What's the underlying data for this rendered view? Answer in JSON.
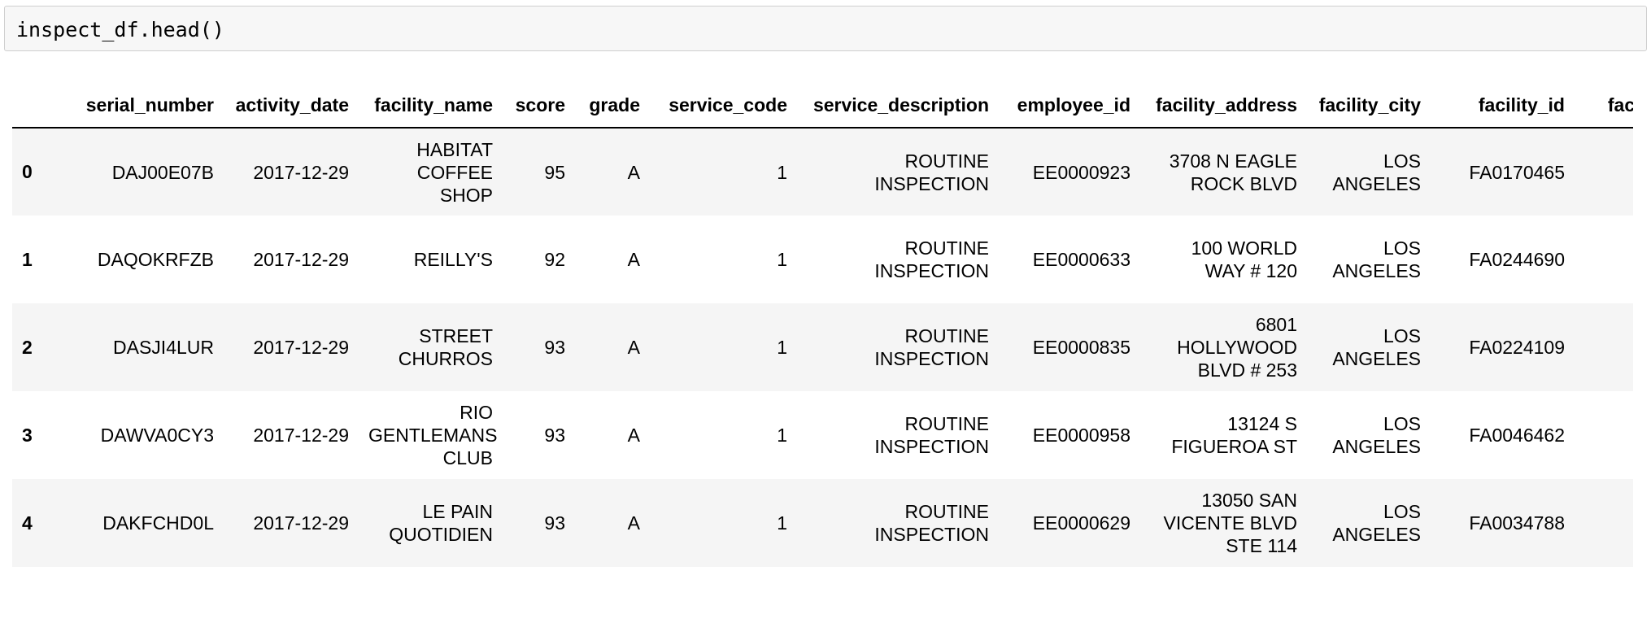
{
  "input_cell": {
    "code": "inspect_df.head()"
  },
  "table": {
    "columns": [
      "",
      "serial_number",
      "activity_date",
      "facility_name",
      "score",
      "grade",
      "service_code",
      "service_description",
      "employee_id",
      "facility_address",
      "facility_city",
      "facility_id",
      "facility_st"
    ],
    "rows": [
      {
        "index": "0",
        "cells": [
          "DAJ00E07B",
          "2017-12-29",
          "HABITAT COFFEE SHOP",
          "95",
          "A",
          "1",
          "ROUTINE INSPECTION",
          "EE0000923",
          "3708 N EAGLE ROCK BLVD",
          "LOS ANGELES",
          "FA0170465",
          ""
        ]
      },
      {
        "index": "1",
        "cells": [
          "DAQOKRFZB",
          "2017-12-29",
          "REILLY'S",
          "92",
          "A",
          "1",
          "ROUTINE INSPECTION",
          "EE0000633",
          "100 WORLD WAY # 120",
          "LOS ANGELES",
          "FA0244690",
          ""
        ]
      },
      {
        "index": "2",
        "cells": [
          "DASJI4LUR",
          "2017-12-29",
          "STREET CHURROS",
          "93",
          "A",
          "1",
          "ROUTINE INSPECTION",
          "EE0000835",
          "6801 HOLLYWOOD BLVD # 253",
          "LOS ANGELES",
          "FA0224109",
          ""
        ]
      },
      {
        "index": "3",
        "cells": [
          "DAWVA0CY3",
          "2017-12-29",
          "RIO GENTLEMANS CLUB",
          "93",
          "A",
          "1",
          "ROUTINE INSPECTION",
          "EE0000958",
          "13124 S FIGUEROA ST",
          "LOS ANGELES",
          "FA0046462",
          ""
        ]
      },
      {
        "index": "4",
        "cells": [
          "DAKFCHD0L",
          "2017-12-29",
          "LE PAIN QUOTIDIEN",
          "93",
          "A",
          "1",
          "ROUTINE INSPECTION",
          "EE0000629",
          "13050 SAN VICENTE BLVD STE 114",
          "LOS ANGELES",
          "FA0034788",
          ""
        ]
      }
    ]
  }
}
